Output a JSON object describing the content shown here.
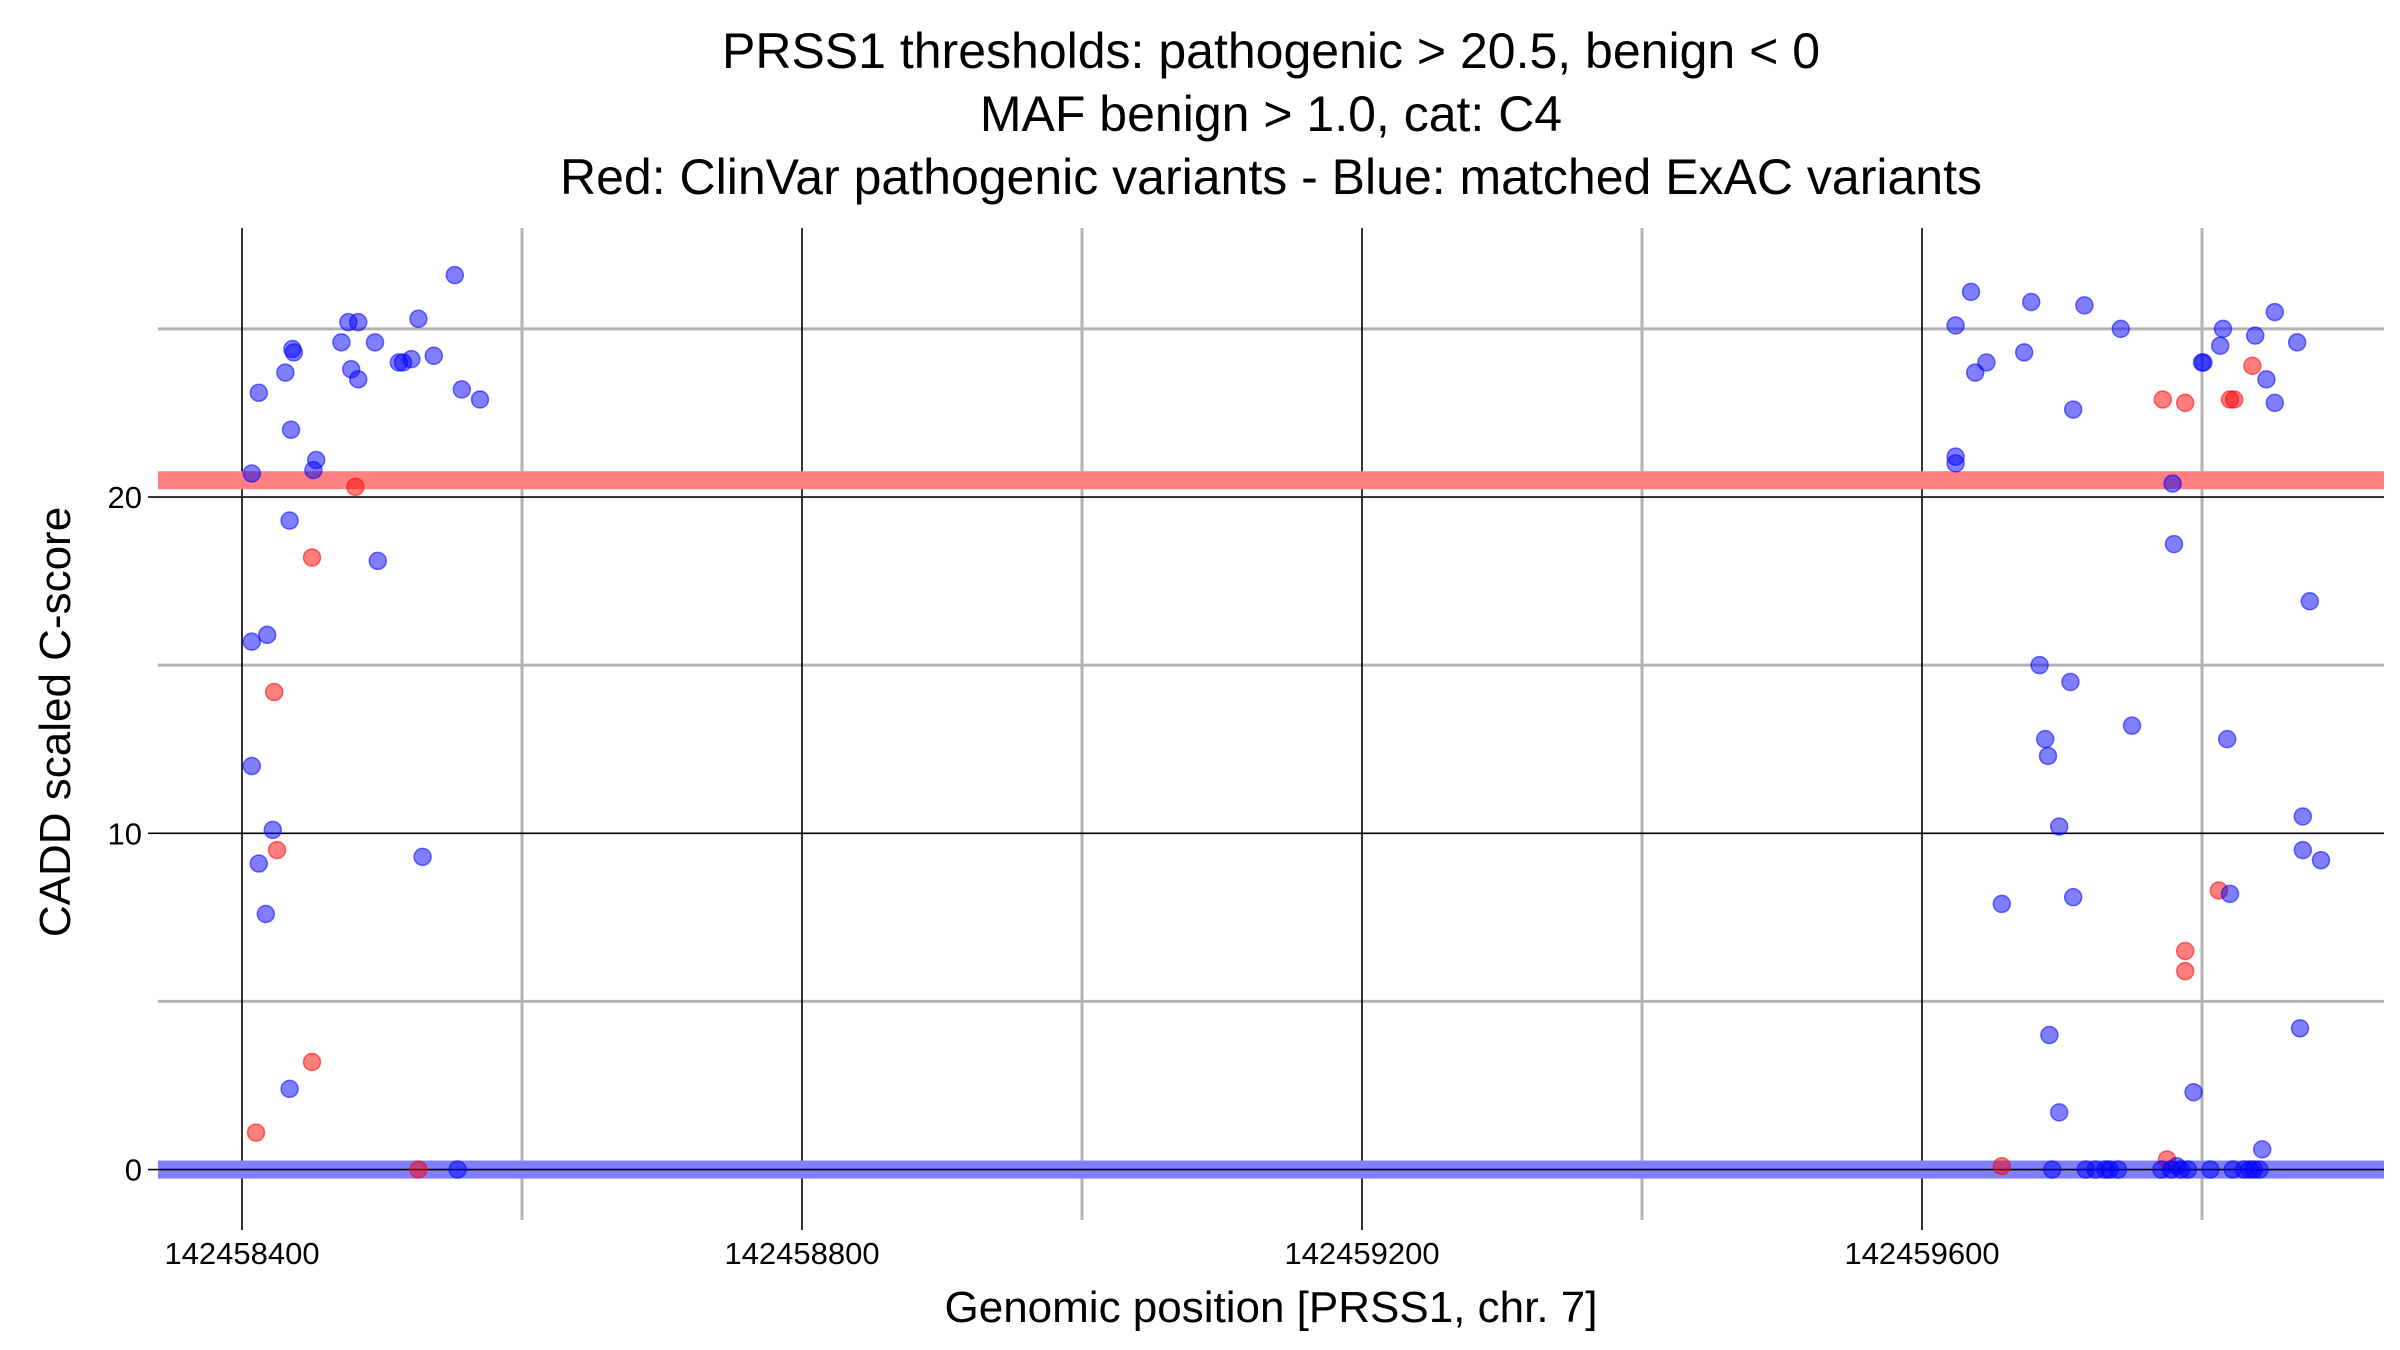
{
  "chart_data": {
    "type": "scatter",
    "title": [
      "PRSS1 thresholds: pathogenic > 20.5, benign < 0",
      "MAF benign > 1.0, cat: C4",
      "Red: ClinVar pathogenic variants - Blue: matched ExAC variants"
    ],
    "xlabel": "Genomic position [PRSS1, chr. 7]",
    "ylabel": "CADD scaled C-score",
    "xlim": [
      142458340,
      142459930
    ],
    "ylim": [
      -1.5,
      28.0
    ],
    "x_ticks": [
      142458400,
      142458800,
      142459200,
      142459600
    ],
    "x_tick_labels": [
      "142458400",
      "142458800",
      "142459200",
      "142459600"
    ],
    "x_minor_grid": [
      142458600,
      142459000,
      142459400,
      142459800
    ],
    "y_ticks": [
      0,
      10,
      20
    ],
    "y_tick_labels": [
      "0",
      "10",
      "20"
    ],
    "y_minor_grid": [
      5,
      15,
      25
    ],
    "grid": true,
    "thresholds": {
      "pathogenic": {
        "value": 20.5,
        "color": "#ff8080"
      },
      "benign": {
        "value": 0,
        "color": "#8080ff"
      }
    },
    "series": [
      {
        "name": "ClinVar pathogenic variants",
        "color": "#ff0000",
        "points": [
          [
            142458410,
            1.1
          ],
          [
            142458423,
            14.2
          ],
          [
            142458425,
            9.5
          ],
          [
            142458450,
            18.2
          ],
          [
            142458450,
            3.2
          ],
          [
            142458481,
            20.3
          ],
          [
            142458526,
            0.0
          ],
          [
            142459657,
            0.1
          ],
          [
            142459772,
            22.9
          ],
          [
            142459775,
            0.3
          ],
          [
            142459788,
            22.8
          ],
          [
            142459788,
            6.5
          ],
          [
            142459788,
            5.9
          ],
          [
            142459812,
            8.3
          ],
          [
            142459820,
            22.9
          ],
          [
            142459823,
            22.9
          ],
          [
            142459836,
            23.9
          ]
        ]
      },
      {
        "name": "matched ExAC variants",
        "color": "#0000ff",
        "points": [
          [
            142458407,
            20.7
          ],
          [
            142458407,
            15.7
          ],
          [
            142458407,
            12.0
          ],
          [
            142458412,
            23.1
          ],
          [
            142458412,
            9.1
          ],
          [
            142458417,
            7.6
          ],
          [
            142458418,
            15.9
          ],
          [
            142458422,
            10.1
          ],
          [
            142458431,
            23.7
          ],
          [
            142458434,
            2.4
          ],
          [
            142458434,
            19.3
          ],
          [
            142458435,
            22.0
          ],
          [
            142458436,
            24.4
          ],
          [
            142458437,
            24.3
          ],
          [
            142458451,
            20.8
          ],
          [
            142458453,
            21.1
          ],
          [
            142458471,
            24.6
          ],
          [
            142458476,
            25.2
          ],
          [
            142458478,
            23.8
          ],
          [
            142458483,
            25.2
          ],
          [
            142458483,
            23.5
          ],
          [
            142458495,
            24.6
          ],
          [
            142458497,
            18.1
          ],
          [
            142458512,
            24.0
          ],
          [
            142458515,
            24.0
          ],
          [
            142458521,
            24.1
          ],
          [
            142458526,
            25.3
          ],
          [
            142458529,
            9.3
          ],
          [
            142458537,
            24.2
          ],
          [
            142458552,
            26.6
          ],
          [
            142458554,
            0.0
          ],
          [
            142458557,
            23.2
          ],
          [
            142458570,
            22.9
          ],
          [
            142459624,
            25.1
          ],
          [
            142459624,
            21.2
          ],
          [
            142459624,
            21.0
          ],
          [
            142459635,
            26.1
          ],
          [
            142459638,
            23.7
          ],
          [
            142459646,
            24.0
          ],
          [
            142459657,
            7.9
          ],
          [
            142459673,
            24.3
          ],
          [
            142459678,
            25.8
          ],
          [
            142459684,
            15.0
          ],
          [
            142459688,
            12.8
          ],
          [
            142459690,
            12.3
          ],
          [
            142459691,
            4.0
          ],
          [
            142459693,
            0.0
          ],
          [
            142459698,
            10.2
          ],
          [
            142459698,
            1.7
          ],
          [
            142459706,
            14.5
          ],
          [
            142459708,
            8.1
          ],
          [
            142459708,
            22.6
          ],
          [
            142459716,
            25.7
          ],
          [
            142459717,
            0.0
          ],
          [
            142459724,
            0.0
          ],
          [
            142459731,
            0.0
          ],
          [
            142459734,
            0.0
          ],
          [
            142459740,
            0.0
          ],
          [
            142459742,
            25.0
          ],
          [
            142459750,
            13.2
          ],
          [
            142459771,
            0.0
          ],
          [
            142459778,
            0.0
          ],
          [
            142459779,
            20.4
          ],
          [
            142459780,
            18.6
          ],
          [
            142459782,
            0.1
          ],
          [
            142459785,
            0.0
          ],
          [
            142459790,
            0.0
          ],
          [
            142459794,
            2.3
          ],
          [
            142459800,
            24.0
          ],
          [
            142459801,
            24.0
          ],
          [
            142459806,
            0.0
          ],
          [
            142459813,
            24.5
          ],
          [
            142459815,
            25.0
          ],
          [
            142459818,
            12.8
          ],
          [
            142459820,
            8.2
          ],
          [
            142459822,
            0.0
          ],
          [
            142459830,
            0.0
          ],
          [
            142459834,
            0.0
          ],
          [
            142459837,
            0.0
          ],
          [
            142459838,
            24.8
          ],
          [
            142459841,
            0.0
          ],
          [
            142459843,
            0.6
          ],
          [
            142459846,
            23.5
          ],
          [
            142459852,
            25.5
          ],
          [
            142459852,
            22.8
          ],
          [
            142459868,
            24.6
          ],
          [
            142459870,
            4.2
          ],
          [
            142459872,
            10.5
          ],
          [
            142459872,
            9.5
          ],
          [
            142459877,
            16.9
          ],
          [
            142459885,
            9.2
          ]
        ]
      }
    ]
  }
}
